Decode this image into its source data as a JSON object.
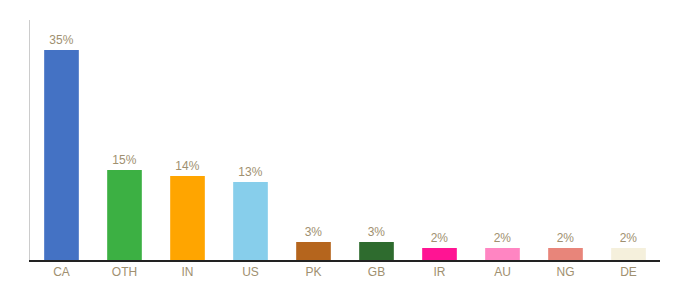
{
  "chart_data": {
    "type": "bar",
    "categories": [
      "CA",
      "OTH",
      "IN",
      "US",
      "PK",
      "GB",
      "IR",
      "AU",
      "NG",
      "DE"
    ],
    "values": [
      35,
      15,
      14,
      13,
      3,
      3,
      2,
      2,
      2,
      2
    ],
    "value_labels": [
      "35%",
      "15%",
      "14%",
      "13%",
      "3%",
      "3%",
      "2%",
      "2%",
      "2%",
      "2%"
    ],
    "colors": [
      "#4472c4",
      "#3cb043",
      "#ffa500",
      "#87ceeb",
      "#b5651d",
      "#2e6b2e",
      "#ff1493",
      "#ff85c2",
      "#e8857a",
      "#f5f0dc"
    ],
    "ylim": [
      0,
      40
    ],
    "data_labels": true,
    "tick_labels": "x",
    "grid": false
  }
}
